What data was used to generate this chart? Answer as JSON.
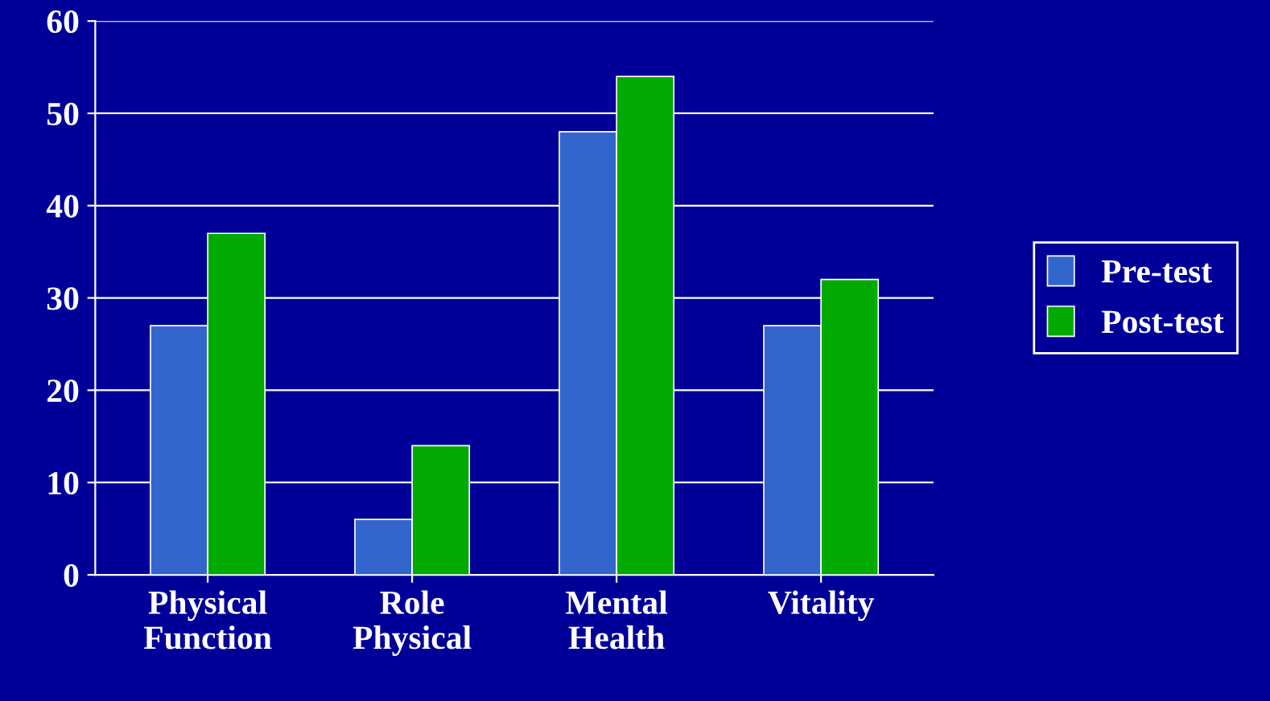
{
  "chart_data": {
    "type": "bar",
    "categories": [
      "Physical\nFunction",
      "Role\nPhysical",
      "Mental\nHealth",
      "Vitality"
    ],
    "series": [
      {
        "name": "Pre-test",
        "color": "#3366cc",
        "values": [
          27,
          6,
          48,
          27
        ]
      },
      {
        "name": "Post-test",
        "color": "#00aa00",
        "values": [
          37,
          14,
          54,
          32
        ]
      }
    ],
    "ylim": [
      0,
      60
    ],
    "yticks": [
      0,
      10,
      20,
      30,
      40,
      50,
      60
    ],
    "grid": "y",
    "legend": "right"
  }
}
